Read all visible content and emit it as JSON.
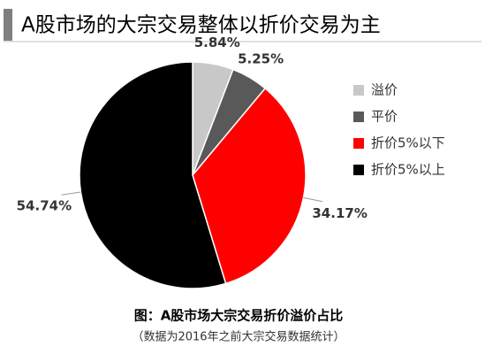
{
  "chart_data": {
    "type": "pie",
    "title": "A股市场的大宗交易整体以折价交易为主",
    "categories": [
      "溢价",
      "平价",
      "折价5%以下",
      "折价5%以上"
    ],
    "values": [
      5.84,
      5.25,
      34.17,
      54.74
    ],
    "value_labels": [
      "5.84%",
      "5.25%",
      "34.17%",
      "54.74%"
    ],
    "colors": [
      "#c8c8c8",
      "#595959",
      "#ff0000",
      "#000000"
    ],
    "legend": "right",
    "caption": "图：A股市场大宗交易折价溢价占比",
    "note": "（数据为2016年之前大宗交易数据统计）"
  }
}
